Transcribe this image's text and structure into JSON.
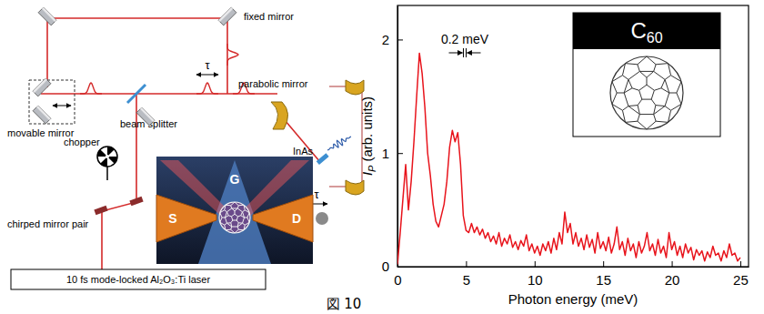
{
  "diagram": {
    "fixed_mirror": "fixed mirror",
    "movable_mirror": "movable mirror",
    "beam_splitter": "beam splitter",
    "parabolic_mirror": "parabolic mirror",
    "chopper": "chopper",
    "chirped_mirror_pair": "chirped mirror pair",
    "laser": "10 fs mode-locked Al₂O₃:Ti laser",
    "emitter": "InAs",
    "delay_labels": [
      "τ",
      "τ"
    ],
    "gate": "G",
    "source": "S",
    "drain": "D"
  },
  "caption": "図 10",
  "chart_data": {
    "type": "line",
    "xlabel": "Photon energy (meV)",
    "ylabel": {
      "symbol": "I",
      "subscript": "P",
      "unit": "(arb. units)"
    },
    "x": [
      0,
      0.2,
      0.4,
      0.6,
      0.8,
      1,
      1.2,
      1.4,
      1.6,
      1.8,
      2,
      2.2,
      2.4,
      2.6,
      2.8,
      3,
      3.2,
      3.4,
      3.6,
      3.8,
      4,
      4.2,
      4.4,
      4.6,
      4.8,
      5,
      5.2,
      5.4,
      5.6,
      5.8,
      6,
      6.2,
      6.4,
      6.6,
      6.8,
      7,
      7.2,
      7.4,
      7.6,
      7.8,
      8,
      8.2,
      8.4,
      8.6,
      8.8,
      9,
      9.2,
      9.4,
      9.6,
      9.8,
      10,
      10.2,
      10.4,
      10.6,
      10.8,
      11,
      11.2,
      11.4,
      11.6,
      11.8,
      12,
      12.2,
      12.4,
      12.6,
      12.8,
      13,
      13.2,
      13.4,
      13.6,
      13.8,
      14,
      14.2,
      14.4,
      14.6,
      14.8,
      15,
      15.2,
      15.4,
      15.6,
      15.8,
      16,
      16.2,
      16.4,
      16.6,
      16.8,
      17,
      17.2,
      17.4,
      17.6,
      17.8,
      18,
      18.2,
      18.4,
      18.6,
      18.8,
      19,
      19.2,
      19.4,
      19.6,
      19.8,
      20,
      20.2,
      20.4,
      20.6,
      20.8,
      21,
      21.2,
      21.4,
      21.6,
      21.8,
      22,
      22.2,
      22.4,
      22.6,
      22.8,
      23,
      23.2,
      23.4,
      23.6,
      23.8,
      24,
      24.2,
      24.4,
      24.6,
      24.8,
      25
    ],
    "values": [
      0.02,
      0.3,
      0.6,
      0.9,
      0.5,
      0.75,
      1.1,
      1.5,
      1.88,
      1.7,
      1.4,
      1.0,
      0.8,
      0.55,
      0.4,
      0.35,
      0.45,
      0.55,
      0.75,
      1.05,
      1.2,
      1.1,
      1.18,
      0.9,
      0.45,
      0.32,
      0.3,
      0.38,
      0.3,
      0.35,
      0.28,
      0.33,
      0.25,
      0.3,
      0.22,
      0.27,
      0.2,
      0.3,
      0.18,
      0.25,
      0.2,
      0.28,
      0.17,
      0.22,
      0.15,
      0.23,
      0.18,
      0.28,
      0.14,
      0.2,
      0.12,
      0.18,
      0.1,
      0.2,
      0.14,
      0.22,
      0.12,
      0.25,
      0.15,
      0.3,
      0.2,
      0.48,
      0.3,
      0.38,
      0.2,
      0.3,
      0.18,
      0.25,
      0.15,
      0.28,
      0.17,
      0.24,
      0.12,
      0.3,
      0.16,
      0.22,
      0.14,
      0.26,
      0.12,
      0.2,
      0.35,
      0.15,
      0.22,
      0.1,
      0.25,
      0.14,
      0.2,
      0.08,
      0.22,
      0.12,
      0.18,
      0.3,
      0.14,
      0.2,
      0.1,
      0.24,
      0.12,
      0.18,
      0.08,
      0.3,
      0.15,
      0.22,
      0.1,
      0.18,
      0.08,
      0.2,
      0.12,
      0.17,
      0.06,
      0.15,
      0.1,
      0.14,
      0.05,
      0.13,
      0.08,
      0.18,
      0.1,
      0.12,
      0.05,
      0.14,
      0.08,
      0.2,
      0.1,
      0.12,
      0.05,
      0.08
    ],
    "color": "#e8141c",
    "xlim": [
      0,
      25.6
    ],
    "xticks": [
      0,
      5,
      10,
      15,
      20,
      25
    ],
    "ylim": [
      0,
      2.3
    ],
    "yticks": [
      0,
      1,
      2
    ],
    "grid": false,
    "scale_bar": {
      "label": "0.2 meV",
      "width": 0.2
    },
    "inset": {
      "title": "C",
      "title_subscript": "60"
    }
  }
}
